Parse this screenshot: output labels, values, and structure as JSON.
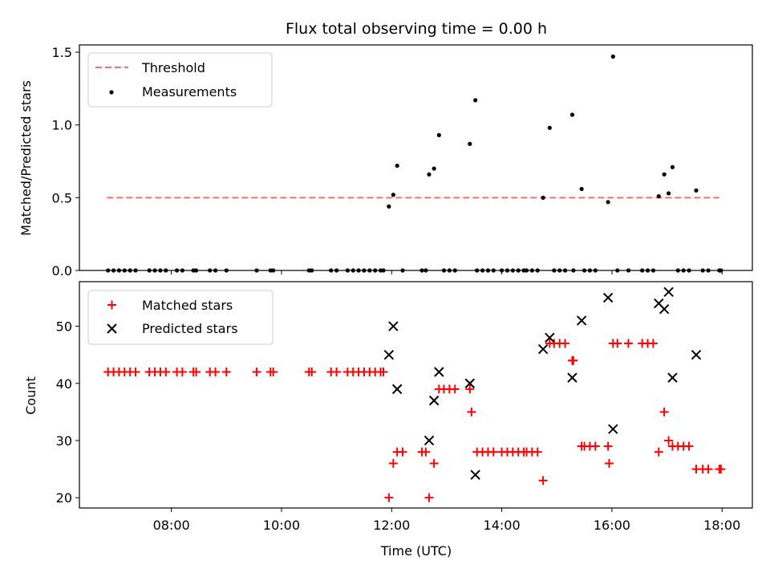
{
  "title": "Flux total observing time = 0.00 h",
  "colors": {
    "threshold": "#ff6b6b",
    "measurements": "#000000",
    "matched": "#ff0000",
    "predicted": "#000000"
  },
  "chart_data": [
    {
      "type": "scatter",
      "panel": "top",
      "ylabel": "Matched/Predicted stars",
      "ylim": [
        0,
        1.55
      ],
      "yticks": [
        "0.0",
        "0.5",
        "1.0",
        "1.5"
      ],
      "ytick_values": [
        0,
        0.5,
        1.0,
        1.5
      ],
      "xlim_hours": [
        6.33,
        18.55
      ],
      "legend_position": "top-left",
      "threshold": {
        "name": "Threshold",
        "value": 0.5,
        "x_range": [
          6.83,
          17.95
        ]
      },
      "series": [
        {
          "name": "Measurements",
          "marker": "dot",
          "points": [
            [
              6.85,
              0
            ],
            [
              6.95,
              0
            ],
            [
              7.05,
              0
            ],
            [
              7.15,
              0
            ],
            [
              7.25,
              0
            ],
            [
              7.35,
              0
            ],
            [
              7.6,
              0
            ],
            [
              7.7,
              0
            ],
            [
              7.8,
              0
            ],
            [
              7.9,
              0
            ],
            [
              8.1,
              0
            ],
            [
              8.2,
              0
            ],
            [
              8.4,
              0
            ],
            [
              8.45,
              0
            ],
            [
              8.7,
              0
            ],
            [
              8.8,
              0
            ],
            [
              9.0,
              0
            ],
            [
              9.55,
              0
            ],
            [
              9.8,
              0
            ],
            [
              9.85,
              0
            ],
            [
              10.5,
              0
            ],
            [
              10.55,
              0
            ],
            [
              10.9,
              0
            ],
            [
              11.0,
              0
            ],
            [
              11.2,
              0
            ],
            [
              11.3,
              0
            ],
            [
              11.4,
              0
            ],
            [
              11.5,
              0
            ],
            [
              11.6,
              0
            ],
            [
              11.7,
              0
            ],
            [
              11.8,
              0
            ],
            [
              11.85,
              0
            ],
            [
              11.95,
              0.44
            ],
            [
              12.03,
              0.52
            ],
            [
              12.1,
              0.72
            ],
            [
              12.2,
              0
            ],
            [
              12.55,
              0
            ],
            [
              12.62,
              0
            ],
            [
              12.68,
              0.66
            ],
            [
              12.77,
              0.7
            ],
            [
              12.86,
              0.93
            ],
            [
              12.95,
              0
            ],
            [
              13.05,
              0
            ],
            [
              13.15,
              0
            ],
            [
              13.42,
              0.87
            ],
            [
              13.52,
              1.17
            ],
            [
              13.55,
              0
            ],
            [
              13.65,
              0
            ],
            [
              13.75,
              0
            ],
            [
              13.85,
              0
            ],
            [
              14.0,
              0
            ],
            [
              14.1,
              0
            ],
            [
              14.2,
              0
            ],
            [
              14.3,
              0
            ],
            [
              14.4,
              0
            ],
            [
              14.45,
              0
            ],
            [
              14.55,
              0
            ],
            [
              14.65,
              0
            ],
            [
              14.75,
              0.5
            ],
            [
              14.87,
              0.98
            ],
            [
              14.95,
              0
            ],
            [
              15.05,
              0
            ],
            [
              15.15,
              0
            ],
            [
              15.28,
              1.07
            ],
            [
              15.3,
              0
            ],
            [
              15.45,
              0.56
            ],
            [
              15.5,
              0
            ],
            [
              15.6,
              0
            ],
            [
              15.7,
              0
            ],
            [
              15.93,
              0.47
            ],
            [
              16.02,
              1.47
            ],
            [
              16.1,
              0
            ],
            [
              16.3,
              0
            ],
            [
              16.55,
              0
            ],
            [
              16.65,
              0
            ],
            [
              16.75,
              0
            ],
            [
              16.85,
              0.51
            ],
            [
              16.95,
              0.66
            ],
            [
              17.03,
              0.53
            ],
            [
              17.1,
              0.71
            ],
            [
              17.2,
              0
            ],
            [
              17.3,
              0
            ],
            [
              17.4,
              0
            ],
            [
              17.53,
              0.55
            ],
            [
              17.65,
              0
            ],
            [
              17.75,
              0
            ],
            [
              17.95,
              0
            ],
            [
              17.98,
              0
            ]
          ]
        }
      ]
    },
    {
      "type": "scatter",
      "panel": "bottom",
      "xlabel": "Time (UTC)",
      "ylabel": "Count",
      "ylim": [
        18.2,
        57.8
      ],
      "yticks": [
        "20",
        "30",
        "40",
        "50"
      ],
      "ytick_values": [
        20,
        30,
        40,
        50
      ],
      "xlim_hours": [
        6.33,
        18.55
      ],
      "xticks": [
        "08:00",
        "10:00",
        "12:00",
        "14:00",
        "16:00",
        "18:00"
      ],
      "xtick_values": [
        8,
        10,
        12,
        14,
        16,
        18
      ],
      "legend_position": "top-left",
      "series": [
        {
          "name": "Matched stars",
          "marker": "plus",
          "points": [
            [
              6.85,
              42
            ],
            [
              6.95,
              42
            ],
            [
              7.05,
              42
            ],
            [
              7.15,
              42
            ],
            [
              7.25,
              42
            ],
            [
              7.35,
              42
            ],
            [
              7.6,
              42
            ],
            [
              7.7,
              42
            ],
            [
              7.8,
              42
            ],
            [
              7.9,
              42
            ],
            [
              8.1,
              42
            ],
            [
              8.2,
              42
            ],
            [
              8.4,
              42
            ],
            [
              8.45,
              42
            ],
            [
              8.7,
              42
            ],
            [
              8.8,
              42
            ],
            [
              9.0,
              42
            ],
            [
              9.55,
              42
            ],
            [
              9.8,
              42
            ],
            [
              9.85,
              42
            ],
            [
              10.5,
              42
            ],
            [
              10.55,
              42
            ],
            [
              10.9,
              42
            ],
            [
              11.0,
              42
            ],
            [
              11.2,
              42
            ],
            [
              11.3,
              42
            ],
            [
              11.4,
              42
            ],
            [
              11.5,
              42
            ],
            [
              11.6,
              42
            ],
            [
              11.7,
              42
            ],
            [
              11.8,
              42
            ],
            [
              11.85,
              42
            ],
            [
              11.95,
              20
            ],
            [
              12.03,
              26
            ],
            [
              12.1,
              28
            ],
            [
              12.2,
              28
            ],
            [
              12.55,
              28
            ],
            [
              12.62,
              28
            ],
            [
              12.68,
              20
            ],
            [
              12.77,
              26
            ],
            [
              12.86,
              39
            ],
            [
              12.95,
              39
            ],
            [
              13.05,
              39
            ],
            [
              13.15,
              39
            ],
            [
              13.42,
              39
            ],
            [
              13.45,
              35
            ],
            [
              13.55,
              28
            ],
            [
              13.65,
              28
            ],
            [
              13.75,
              28
            ],
            [
              13.85,
              28
            ],
            [
              14.0,
              28
            ],
            [
              14.1,
              28
            ],
            [
              14.2,
              28
            ],
            [
              14.3,
              28
            ],
            [
              14.4,
              28
            ],
            [
              14.45,
              28
            ],
            [
              14.55,
              28
            ],
            [
              14.65,
              28
            ],
            [
              14.75,
              23
            ],
            [
              14.87,
              47
            ],
            [
              14.95,
              47
            ],
            [
              15.05,
              47
            ],
            [
              15.15,
              47
            ],
            [
              15.28,
              44
            ],
            [
              15.3,
              44
            ],
            [
              15.45,
              29
            ],
            [
              15.5,
              29
            ],
            [
              15.6,
              29
            ],
            [
              15.7,
              29
            ],
            [
              15.93,
              29
            ],
            [
              15.95,
              26
            ],
            [
              16.02,
              47
            ],
            [
              16.1,
              47
            ],
            [
              16.3,
              47
            ],
            [
              16.55,
              47
            ],
            [
              16.65,
              47
            ],
            [
              16.75,
              47
            ],
            [
              16.85,
              28
            ],
            [
              16.95,
              35
            ],
            [
              17.03,
              30
            ],
            [
              17.1,
              29
            ],
            [
              17.2,
              29
            ],
            [
              17.3,
              29
            ],
            [
              17.4,
              29
            ],
            [
              17.53,
              25
            ],
            [
              17.65,
              25
            ],
            [
              17.75,
              25
            ],
            [
              17.95,
              25
            ],
            [
              17.98,
              25
            ]
          ]
        },
        {
          "name": "Predicted stars",
          "marker": "x",
          "points": [
            [
              11.95,
              45
            ],
            [
              12.03,
              50
            ],
            [
              12.1,
              39
            ],
            [
              12.68,
              30
            ],
            [
              12.77,
              37
            ],
            [
              12.86,
              42
            ],
            [
              13.42,
              40
            ],
            [
              13.52,
              24
            ],
            [
              14.75,
              46
            ],
            [
              14.87,
              48
            ],
            [
              15.28,
              41
            ],
            [
              15.45,
              51
            ],
            [
              15.93,
              55
            ],
            [
              16.02,
              32
            ],
            [
              16.85,
              54
            ],
            [
              16.95,
              53
            ],
            [
              17.03,
              56
            ],
            [
              17.1,
              41
            ],
            [
              17.53,
              45
            ]
          ]
        }
      ]
    }
  ]
}
